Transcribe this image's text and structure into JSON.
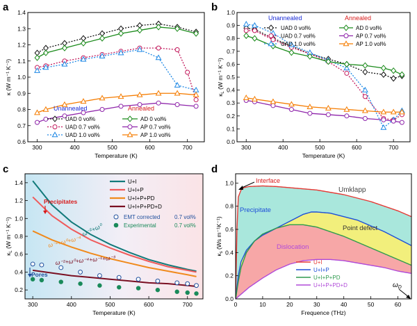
{
  "chart_data": [
    {
      "panel": "a",
      "type": "line",
      "xlabel": "Temperature (K)",
      "ylabel": "κ (W m⁻¹ K⁻¹)",
      "xlim": [
        275,
        745
      ],
      "ylim": [
        0.6,
        1.4
      ],
      "xticks": [
        300,
        400,
        500,
        600,
        700
      ],
      "yticks": [
        0.6,
        0.7,
        0.8,
        0.9,
        1.0,
        1.1,
        1.2,
        1.3,
        1.4
      ],
      "legend_groups": [
        {
          "title": "Unannealed",
          "color": "#1a2bd6",
          "position": "bottom-left"
        },
        {
          "title": "Annealed",
          "color": "#d81b1b",
          "position": "bottom-right"
        }
      ],
      "series": [
        {
          "name": "UAD 0 vol%",
          "color": "#111111",
          "dashed": true,
          "marker": "diamond-open",
          "x": [
            300,
            323,
            373,
            423,
            473,
            523,
            573,
            623,
            673,
            723
          ],
          "y": [
            1.15,
            1.18,
            1.21,
            1.24,
            1.27,
            1.3,
            1.32,
            1.33,
            1.31,
            1.28
          ]
        },
        {
          "name": "AD 0 vol%",
          "color": "#1a8a1a",
          "dashed": false,
          "marker": "diamond-open",
          "x": [
            300,
            323,
            373,
            423,
            473,
            523,
            573,
            623,
            673,
            723
          ],
          "y": [
            1.12,
            1.15,
            1.18,
            1.21,
            1.24,
            1.27,
            1.29,
            1.31,
            1.3,
            1.27
          ]
        },
        {
          "name": "UAD 0.7 vol%",
          "color": "#c2185b",
          "dashed": true,
          "marker": "circle-open",
          "x": [
            300,
            323,
            373,
            423,
            473,
            523,
            573,
            623,
            673,
            700,
            723
          ],
          "y": [
            1.06,
            1.07,
            1.1,
            1.12,
            1.14,
            1.16,
            1.18,
            1.18,
            1.17,
            1.03,
            0.86
          ]
        },
        {
          "name": "UAD 1.0 vol%",
          "color": "#1e88e5",
          "dashed": true,
          "marker": "triangle-open",
          "x": [
            300,
            323,
            373,
            423,
            473,
            523,
            573,
            623,
            673,
            723
          ],
          "y": [
            1.04,
            1.06,
            1.08,
            1.11,
            1.13,
            1.15,
            1.17,
            1.12,
            0.95,
            0.92
          ]
        },
        {
          "name": "AP 1.0 vol%",
          "color": "#f57c00",
          "dashed": false,
          "marker": "triangle-open",
          "x": [
            300,
            323,
            373,
            423,
            473,
            523,
            573,
            623,
            673,
            723
          ],
          "y": [
            0.78,
            0.8,
            0.83,
            0.85,
            0.87,
            0.88,
            0.89,
            0.9,
            0.9,
            0.89
          ]
        },
        {
          "name": "AP 0.7 vol%",
          "color": "#8e24aa",
          "dashed": false,
          "marker": "circle-open",
          "x": [
            300,
            323,
            373,
            423,
            473,
            523,
            573,
            623,
            673,
            723
          ],
          "y": [
            0.72,
            0.74,
            0.76,
            0.78,
            0.8,
            0.82,
            0.83,
            0.84,
            0.83,
            0.82
          ]
        }
      ]
    },
    {
      "panel": "b",
      "type": "line",
      "xlabel": "Temperature (K)",
      "ylabel": "κL (W m⁻¹ K⁻¹)",
      "xlim": [
        275,
        745
      ],
      "ylim": [
        0.0,
        1.0
      ],
      "xticks": [
        300,
        400,
        500,
        600,
        700
      ],
      "yticks": [
        0.0,
        0.1,
        0.2,
        0.3,
        0.4,
        0.5,
        0.6,
        0.7,
        0.8,
        0.9,
        1.0
      ],
      "legend_groups": [
        {
          "title": "Unannealed",
          "color": "#1a2bd6",
          "position": "top-left"
        },
        {
          "title": "Annealed",
          "color": "#d81b1b",
          "position": "top-right"
        }
      ],
      "series": [
        {
          "name": "UAD 0 vol%",
          "color": "#111111",
          "dashed": true,
          "marker": "diamond-open",
          "x": [
            300,
            323,
            373,
            423,
            473,
            523,
            573,
            623,
            673,
            700,
            723
          ],
          "y": [
            0.88,
            0.87,
            0.8,
            0.74,
            0.68,
            0.64,
            0.6,
            0.54,
            0.52,
            0.49,
            0.51
          ]
        },
        {
          "name": "UAD 0.7 vol%",
          "color": "#c2185b",
          "dashed": true,
          "marker": "circle-open",
          "x": [
            300,
            323,
            373,
            423,
            473,
            523,
            573,
            623,
            673,
            700,
            723
          ],
          "y": [
            0.86,
            0.86,
            0.79,
            0.73,
            0.68,
            0.62,
            0.53,
            0.35,
            0.18,
            0.17,
            0.21
          ]
        },
        {
          "name": "UAD 1.0 vol%",
          "color": "#1e88e5",
          "dashed": true,
          "marker": "triangle-open",
          "x": [
            300,
            323,
            373,
            423,
            473,
            523,
            573,
            623,
            673,
            700,
            723
          ],
          "y": [
            0.91,
            0.9,
            0.84,
            0.75,
            0.69,
            0.63,
            0.57,
            0.4,
            0.11,
            0.17,
            0.24
          ]
        },
        {
          "name": "AD 0 vol%",
          "color": "#1a8a1a",
          "dashed": false,
          "marker": "diamond-open",
          "x": [
            300,
            323,
            373,
            423,
            473,
            523,
            573,
            623,
            673,
            700,
            723
          ],
          "y": [
            0.82,
            0.8,
            0.74,
            0.69,
            0.66,
            0.62,
            0.6,
            0.59,
            0.57,
            0.55,
            0.52
          ]
        },
        {
          "name": "AP 0.7 vol%",
          "color": "#8e24aa",
          "dashed": false,
          "marker": "circle-open",
          "x": [
            300,
            323,
            373,
            423,
            473,
            523,
            573,
            623,
            673,
            700,
            723
          ],
          "y": [
            0.32,
            0.31,
            0.28,
            0.25,
            0.22,
            0.21,
            0.2,
            0.18,
            0.17,
            0.16,
            0.15
          ]
        },
        {
          "name": "AP 1.0 vol%",
          "color": "#f57c00",
          "dashed": false,
          "marker": "triangle-open",
          "x": [
            300,
            323,
            373,
            423,
            473,
            523,
            573,
            623,
            673,
            700,
            723
          ],
          "y": [
            0.34,
            0.33,
            0.31,
            0.29,
            0.27,
            0.26,
            0.25,
            0.24,
            0.23,
            0.23,
            0.23
          ]
        }
      ]
    },
    {
      "panel": "c",
      "type": "line",
      "xlabel": "Temperature (K)",
      "ylabel": "κL (W m⁻¹ K⁻¹)",
      "xlim": [
        280,
        740
      ],
      "ylim": [
        0.1,
        1.5
      ],
      "xticks": [
        300,
        400,
        500,
        600,
        700
      ],
      "yticks": [
        0.2,
        0.4,
        0.6,
        0.8,
        1.0,
        1.2,
        1.4
      ],
      "background": "gradient light-blue to light-pink",
      "series": [
        {
          "name": "U+I",
          "color": "#127a7a",
          "kind": "line",
          "x": [
            300,
            350,
            400,
            450,
            500,
            550,
            600,
            650,
            700,
            723
          ],
          "y": [
            1.42,
            1.15,
            0.96,
            0.82,
            0.71,
            0.62,
            0.54,
            0.48,
            0.43,
            0.41
          ]
        },
        {
          "name": "U+I+P",
          "color": "#ef5b5b",
          "kind": "line",
          "x": [
            300,
            350,
            400,
            450,
            500,
            550,
            600,
            650,
            700,
            723
          ],
          "y": [
            1.24,
            1.03,
            0.88,
            0.76,
            0.67,
            0.59,
            0.52,
            0.46,
            0.42,
            0.4
          ]
        },
        {
          "name": "U+I+P+PD",
          "color": "#f08a1c",
          "kind": "line",
          "x": [
            300,
            350,
            400,
            450,
            500,
            550,
            600,
            650,
            700,
            723
          ],
          "y": [
            0.86,
            0.76,
            0.68,
            0.61,
            0.55,
            0.5,
            0.45,
            0.41,
            0.37,
            0.35
          ]
        },
        {
          "name": "U+I+P+PD+D",
          "color": "#7a0f22",
          "kind": "line",
          "x": [
            300,
            350,
            400,
            450,
            500,
            550,
            600,
            650,
            700,
            723
          ],
          "y": [
            0.42,
            0.39,
            0.36,
            0.34,
            0.32,
            0.3,
            0.28,
            0.27,
            0.25,
            0.24
          ]
        },
        {
          "name": "EMT corrected",
          "color": "#1e4e9c",
          "kind": "scatter-open",
          "x": [
            300,
            323,
            373,
            423,
            473,
            523,
            573,
            623,
            673,
            700,
            723
          ],
          "y": [
            0.49,
            0.48,
            0.45,
            0.4,
            0.36,
            0.34,
            0.32,
            0.3,
            0.28,
            0.27,
            0.25
          ]
        },
        {
          "name": "Experimental",
          "color": "#1a8a5a",
          "kind": "scatter-filled",
          "x": [
            300,
            323,
            373,
            423,
            473,
            523,
            573,
            623,
            673,
            700,
            723
          ],
          "y": [
            0.32,
            0.31,
            0.29,
            0.27,
            0.25,
            0.23,
            0.22,
            0.2,
            0.18,
            0.17,
            0.16
          ]
        }
      ]
    },
    {
      "panel": "d",
      "type": "area",
      "xlabel": "Frequence (THz)",
      "ylabel": "κs (Ws m⁻¹K⁻¹)",
      "xlim": [
        0,
        65
      ],
      "ylim": [
        0.0,
        1.08
      ],
      "xticks": [
        0,
        10,
        20,
        30,
        40,
        50,
        60
      ],
      "yticks": [
        0.0,
        0.2,
        0.4,
        0.6,
        0.8,
        1.0
      ],
      "series": [
        {
          "name": "U+I",
          "color": "#e53935",
          "x": [
            0,
            0.5,
            1,
            2,
            3,
            5,
            10,
            15,
            20,
            25,
            30,
            35,
            40,
            45,
            50,
            55,
            60,
            65
          ],
          "y": [
            0.0,
            0.6,
            0.88,
            0.94,
            0.96,
            0.97,
            0.975,
            0.97,
            0.96,
            0.95,
            0.94,
            0.92,
            0.9,
            0.87,
            0.84,
            0.8,
            0.76,
            0.71
          ]
        },
        {
          "name": "U+I+P",
          "color": "#1e4fd8",
          "x": [
            0,
            1,
            2,
            4,
            7,
            10,
            15,
            20,
            25,
            28,
            30,
            35,
            40,
            45,
            50,
            55,
            60,
            65
          ],
          "y": [
            0.0,
            0.2,
            0.32,
            0.42,
            0.5,
            0.55,
            0.61,
            0.67,
            0.73,
            0.75,
            0.75,
            0.74,
            0.71,
            0.68,
            0.63,
            0.58,
            0.52,
            0.46
          ]
        },
        {
          "name": "U+I+P+PD",
          "color": "#2e9a4e",
          "x": [
            0,
            1,
            2,
            4,
            7,
            10,
            15,
            20,
            25,
            30,
            35,
            40,
            45,
            50,
            55,
            60,
            65
          ],
          "y": [
            0.0,
            0.15,
            0.27,
            0.4,
            0.5,
            0.56,
            0.61,
            0.64,
            0.64,
            0.62,
            0.58,
            0.54,
            0.49,
            0.44,
            0.39,
            0.34,
            0.29
          ]
        },
        {
          "name": "U+I+P+PD+D",
          "color": "#b04ad8",
          "x": [
            0,
            2,
            5,
            10,
            15,
            20,
            25,
            30,
            35,
            40,
            45,
            50,
            55,
            60,
            65
          ],
          "y": [
            0.0,
            0.04,
            0.1,
            0.18,
            0.25,
            0.3,
            0.33,
            0.34,
            0.34,
            0.33,
            0.31,
            0.29,
            0.27,
            0.24,
            0.22
          ]
        }
      ]
    }
  ],
  "labels": {
    "panel_a": "a",
    "panel_b": "b",
    "panel_c": "c",
    "panel_d": "d",
    "a_xlabel": "Temperature (K)",
    "b_xlabel": "Temperature (K)",
    "c_xlabel": "Temperature (K)",
    "d_xlabel": "Frequence (THz)",
    "unannealed": "Unannealed",
    "annealed": "Annealed",
    "c_precipitates": "Precipitates",
    "c_pores": "Pores",
    "c_emt_label": "EMT corrected",
    "c_emt_vol": "0.7 vol%",
    "c_exp_label": "Experimental",
    "c_exp_vol": "0.7 vol%",
    "d_interface": "Interface",
    "d_umklapp": "Umklapp",
    "d_precipitate": "Precipitate",
    "d_point_defect": "Point defect",
    "d_dislocation": "Dislocation",
    "d_omega_d": "ωD"
  }
}
